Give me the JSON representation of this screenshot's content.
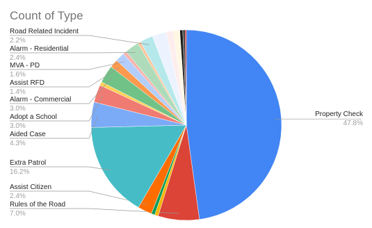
{
  "chart_data": {
    "type": "pie",
    "title": "Count of Type",
    "categories": [
      "Property Check",
      "Rules of the Road",
      null,
      null,
      "Assist Citizen",
      "Extra Patrol",
      "Aided Case",
      "Adopt a School",
      null,
      "Alarm - Commercial",
      "Assist RFD",
      "MVA - PD",
      null,
      "Alarm - Residential",
      null,
      "Road Related Incident",
      null,
      null,
      null,
      null,
      null,
      null
    ],
    "values": [
      47.8,
      7.0,
      0.6,
      0.6,
      2.4,
      16.2,
      4.3,
      3.0,
      0.6,
      3.0,
      1.4,
      1.6,
      0.6,
      2.4,
      0.5,
      2.2,
      2.4,
      1.2,
      1.1,
      0.5,
      0.4,
      0.2
    ],
    "value_labels": [
      "47.8%",
      "7.0%",
      null,
      null,
      "2.4%",
      "16.2%",
      "4.3%",
      "3.0%",
      null,
      "3.0%",
      "1.4%",
      "1.6%",
      null,
      "2.4%",
      null,
      "2.2%",
      null,
      null,
      null,
      null,
      null,
      null
    ],
    "colors": [
      "#4285f4",
      "#db4437",
      "#f4b400",
      "#0f9d58",
      "#ff6d01",
      "#46bdc6",
      "#7baaf7",
      "#f07b72",
      "#fcd04f",
      "#71c287",
      "#ff994d",
      "#b3cefb",
      "#f7b4ae",
      "#aedcba",
      "#ffc599",
      "#b5e8eb",
      "#ecf3fe",
      "#fdeeed",
      "#fff7e1",
      "#1a1a1a",
      "#444444",
      "#cc0000"
    ]
  }
}
